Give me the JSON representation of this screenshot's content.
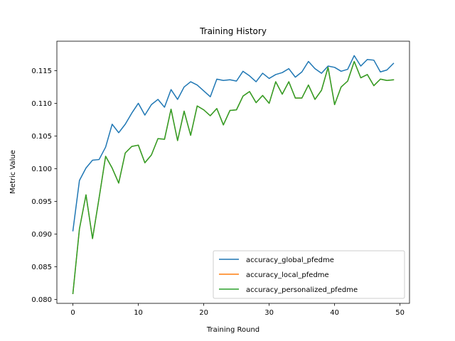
{
  "chart_data": {
    "type": "line",
    "title": "Training History",
    "xlabel": "Training Round",
    "ylabel": "Metric Value",
    "xlim": [
      -2.45,
      51.45
    ],
    "ylim": [
      0.0794,
      0.1195
    ],
    "xticks": [
      0,
      10,
      20,
      30,
      40,
      50
    ],
    "xtick_labels": [
      "0",
      "10",
      "20",
      "30",
      "40",
      "50"
    ],
    "yticks": [
      0.08,
      0.085,
      0.09,
      0.095,
      0.1,
      0.105,
      0.11,
      0.115
    ],
    "ytick_labels": [
      "0.080",
      "0.085",
      "0.090",
      "0.095",
      "0.100",
      "0.105",
      "0.110",
      "0.115"
    ],
    "grid": false,
    "legend_position": "lower-right",
    "x": [
      0,
      1,
      2,
      3,
      4,
      5,
      6,
      7,
      8,
      9,
      10,
      11,
      12,
      13,
      14,
      15,
      16,
      17,
      18,
      19,
      20,
      21,
      22,
      23,
      24,
      25,
      26,
      27,
      28,
      29,
      30,
      31,
      32,
      33,
      34,
      35,
      36,
      37,
      38,
      39,
      40,
      41,
      42,
      43,
      44,
      45,
      46,
      47,
      48,
      49
    ],
    "series": [
      {
        "name": "accuracy_global_pfedme",
        "color": "#1f77b4",
        "values": [
          0.0905,
          0.0982,
          0.1001,
          0.1013,
          0.1014,
          0.1033,
          0.1068,
          0.1055,
          0.1068,
          0.1085,
          0.11,
          0.1082,
          0.1098,
          0.1106,
          0.1094,
          0.1121,
          0.1106,
          0.1125,
          0.1133,
          0.1128,
          0.1119,
          0.111,
          0.1137,
          0.1135,
          0.1136,
          0.1134,
          0.1149,
          0.1142,
          0.1133,
          0.1146,
          0.1138,
          0.1144,
          0.1147,
          0.1153,
          0.114,
          0.1148,
          0.1164,
          0.1153,
          0.1146,
          0.1157,
          0.1155,
          0.1149,
          0.1152,
          0.1173,
          0.1157,
          0.1167,
          0.1166,
          0.1148,
          0.1151,
          0.1161
        ]
      },
      {
        "name": "accuracy_local_pfedme",
        "color": "#ff7f0e",
        "values": [
          0.0809,
          0.0908,
          0.096,
          0.0893,
          0.0955,
          0.1019,
          0.1001,
          0.0978,
          0.1024,
          0.1034,
          0.1036,
          0.1009,
          0.1021,
          0.1046,
          0.1045,
          0.1091,
          0.1043,
          0.1088,
          0.1051,
          0.1096,
          0.109,
          0.1081,
          0.1092,
          0.1067,
          0.1089,
          0.109,
          0.1111,
          0.1118,
          0.1101,
          0.1112,
          0.11,
          0.1133,
          0.1114,
          0.1133,
          0.1108,
          0.1108,
          0.1128,
          0.1106,
          0.112,
          0.1155,
          0.1098,
          0.1125,
          0.1134,
          0.1164,
          0.1139,
          0.1144,
          0.1127,
          0.1137,
          0.1135,
          0.1136
        ]
      },
      {
        "name": "accuracy_personalized_pfedme",
        "color": "#2ca02c",
        "values": [
          0.0809,
          0.0908,
          0.096,
          0.0893,
          0.0955,
          0.1019,
          0.1001,
          0.0978,
          0.1024,
          0.1034,
          0.1036,
          0.1009,
          0.1021,
          0.1046,
          0.1045,
          0.1091,
          0.1043,
          0.1088,
          0.1051,
          0.1096,
          0.109,
          0.1081,
          0.1092,
          0.1067,
          0.1089,
          0.109,
          0.1111,
          0.1118,
          0.1101,
          0.1112,
          0.11,
          0.1133,
          0.1114,
          0.1133,
          0.1108,
          0.1108,
          0.1128,
          0.1106,
          0.112,
          0.1155,
          0.1098,
          0.1125,
          0.1134,
          0.1164,
          0.1139,
          0.1144,
          0.1127,
          0.1137,
          0.1135,
          0.1136
        ]
      }
    ]
  }
}
